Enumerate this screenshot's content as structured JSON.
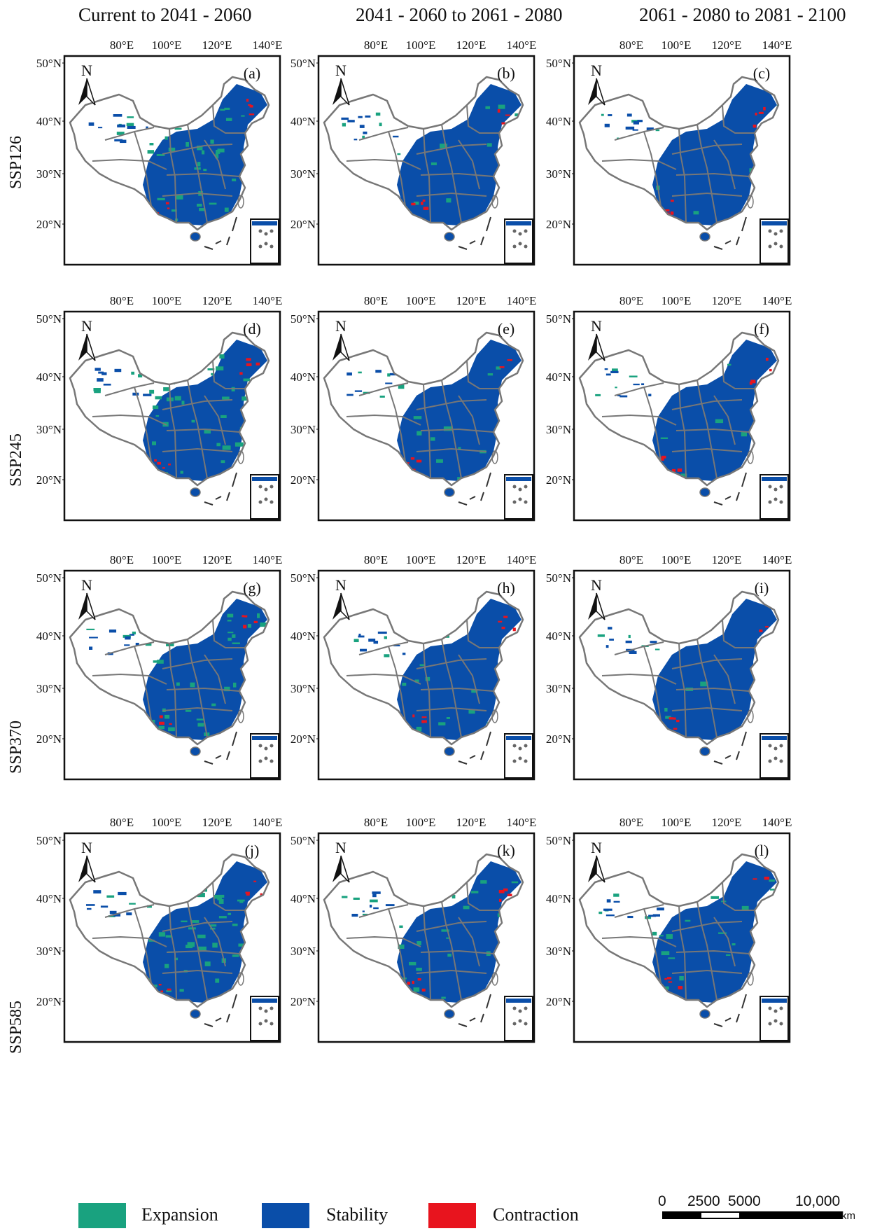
{
  "columns": [
    "Current to 2041  - 2060",
    "2041  - 2060 to 2061  - 2080",
    "2061  - 2080 to 2081  - 2100"
  ],
  "rows": [
    "SSP126",
    "SSP245",
    "SSP370",
    "SSP585"
  ],
  "panel_letters": [
    "(a)",
    "(b)",
    "(c)",
    "(d)",
    "(e)",
    "(f)",
    "(g)",
    "(h)",
    "(i)",
    "(j)",
    "(k)",
    "(l)"
  ],
  "lon_ticks": [
    "80°E",
    "100°E",
    "120°E",
    "140°E"
  ],
  "lat_ticks": [
    "50°N",
    "40°N",
    "30°N",
    "20°N"
  ],
  "north_arrow": "N",
  "legend": [
    {
      "label": "Expansion",
      "color": "#19a27f"
    },
    {
      "label": "Stability",
      "color": "#0a4ea9"
    },
    {
      "label": "Contraction",
      "color": "#e8141e"
    }
  ],
  "scale": {
    "ticks": [
      "0",
      "2500",
      "5000",
      "10,000"
    ],
    "unit": "km"
  },
  "colors": {
    "expansion": "#19a27f",
    "stability": "#0a4ea9",
    "contraction": "#e8141e",
    "border": "#777777"
  }
}
